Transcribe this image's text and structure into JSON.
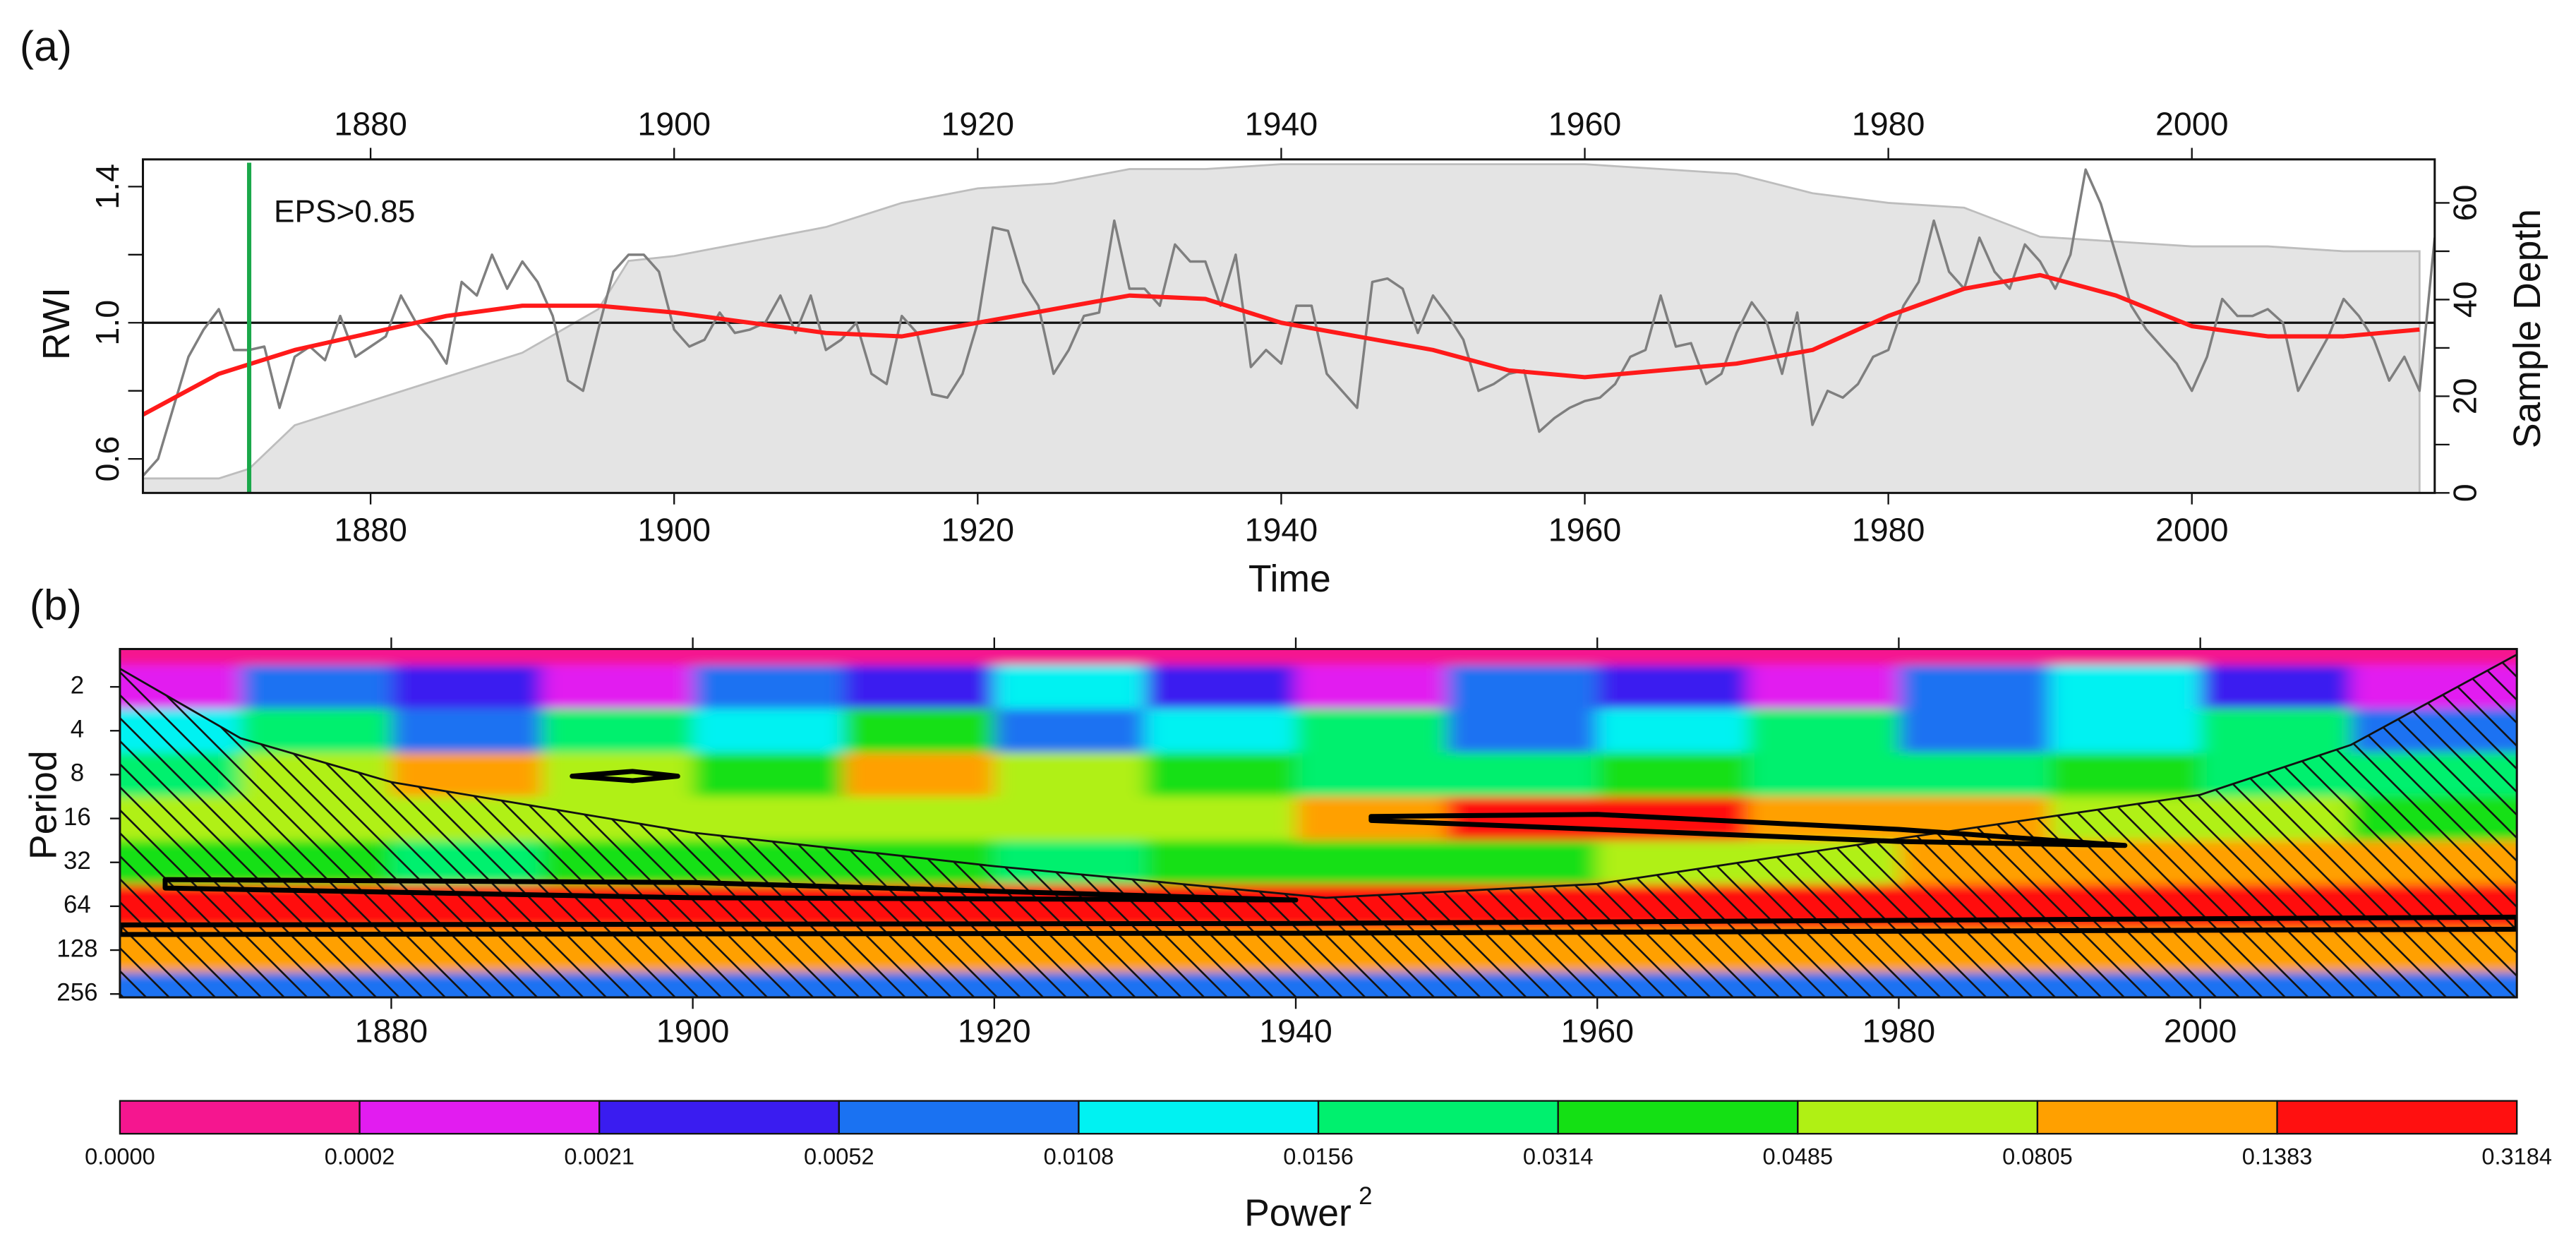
{
  "chart_data": [
    {
      "type": "line",
      "panel_label": "(a)",
      "xlabel": "Time",
      "ylabel": "RWI",
      "y2label": "Sample Depth",
      "xlim": [
        1865,
        2016
      ],
      "xticks": [
        1880,
        1900,
        1920,
        1940,
        1960,
        1980,
        2000
      ],
      "ylim": [
        0.5,
        1.48
      ],
      "yticks": [
        0.6,
        {
          "value": 1,
          "label": "1.0"
        },
        1.4
      ],
      "yminorticks": [
        0.8,
        1.2
      ],
      "y2lim": [
        0,
        69
      ],
      "y2ticks": [
        0,
        20,
        40,
        60
      ],
      "y2minorticks": [
        10,
        30,
        50
      ],
      "hline": 1,
      "annotation": {
        "text": "EPS>0.85",
        "x": 1872,
        "color": "#1aa84a"
      },
      "series": [
        {
          "kind": "area",
          "axis": "y2",
          "color": "#e4e4e4",
          "x": [
            1865,
            1870,
            1872,
            1875,
            1880,
            1885,
            1890,
            1895,
            1897,
            1900,
            1905,
            1910,
            1915,
            1920,
            1925,
            1930,
            1935,
            1940,
            1945,
            1950,
            1955,
            1960,
            1965,
            1970,
            1975,
            1980,
            1985,
            1990,
            1995,
            2000,
            2005,
            2010,
            2015
          ],
          "values": [
            3,
            3,
            5,
            14,
            19,
            24,
            29,
            38,
            48,
            49,
            52,
            55,
            60,
            63,
            64,
            67,
            67,
            68,
            68,
            68,
            68,
            68,
            67,
            66,
            62,
            60,
            59,
            53,
            52,
            51,
            51,
            50,
            50
          ]
        },
        {
          "kind": "line",
          "color": "#7f7f7f",
          "x": [
            1865,
            1866,
            1867,
            1868,
            1869,
            1870,
            1871,
            1872,
            1873,
            1874,
            1875,
            1876,
            1877,
            1878,
            1879,
            1880,
            1881,
            1882,
            1883,
            1884,
            1885,
            1886,
            1887,
            1888,
            1889,
            1890,
            1891,
            1892,
            1893,
            1894,
            1895,
            1896,
            1897,
            1898,
            1899,
            1900,
            1901,
            1902,
            1903,
            1904,
            1905,
            1906,
            1907,
            1908,
            1909,
            1910,
            1911,
            1912,
            1913,
            1914,
            1915,
            1916,
            1917,
            1918,
            1919,
            1920,
            1921,
            1922,
            1923,
            1924,
            1925,
            1926,
            1927,
            1928,
            1929,
            1930,
            1931,
            1932,
            1933,
            1934,
            1935,
            1936,
            1937,
            1938,
            1939,
            1940,
            1941,
            1942,
            1943,
            1944,
            1945,
            1946,
            1947,
            1948,
            1949,
            1950,
            1951,
            1952,
            1953,
            1954,
            1955,
            1956,
            1957,
            1958,
            1959,
            1960,
            1961,
            1962,
            1963,
            1964,
            1965,
            1966,
            1967,
            1968,
            1969,
            1970,
            1971,
            1972,
            1973,
            1974,
            1975,
            1976,
            1977,
            1978,
            1979,
            1980,
            1981,
            1982,
            1983,
            1984,
            1985,
            1986,
            1987,
            1988,
            1989,
            1990,
            1991,
            1992,
            1993,
            1994,
            1995,
            1996,
            1997,
            1998,
            1999,
            2000,
            2001,
            2002,
            2003,
            2004,
            2005,
            2006,
            2007,
            2008,
            2009,
            2010,
            2011,
            2012,
            2013,
            2014,
            2015,
            2016
          ],
          "values": [
            0.55,
            0.6,
            0.75,
            0.9,
            0.98,
            1.04,
            0.92,
            0.92,
            0.93,
            0.75,
            0.9,
            0.93,
            0.89,
            1.02,
            0.9,
            0.93,
            0.96,
            1.08,
            1.0,
            0.95,
            0.88,
            1.12,
            1.08,
            1.2,
            1.1,
            1.18,
            1.12,
            1.02,
            0.83,
            0.8,
            0.98,
            1.15,
            1.2,
            1.2,
            1.15,
            0.98,
            0.93,
            0.95,
            1.03,
            0.97,
            0.98,
            1.0,
            1.08,
            0.97,
            1.08,
            0.92,
            0.95,
            1.0,
            0.85,
            0.82,
            1.02,
            0.97,
            0.79,
            0.78,
            0.85,
            1.0,
            1.28,
            1.27,
            1.12,
            1.05,
            0.85,
            0.92,
            1.02,
            1.03,
            1.3,
            1.1,
            1.1,
            1.05,
            1.23,
            1.18,
            1.18,
            1.05,
            1.2,
            0.87,
            0.92,
            0.88,
            1.05,
            1.05,
            0.85,
            0.8,
            0.75,
            1.12,
            1.13,
            1.1,
            0.97,
            1.08,
            1.02,
            0.95,
            0.8,
            0.82,
            0.85,
            0.86,
            0.68,
            0.72,
            0.75,
            0.77,
            0.78,
            0.82,
            0.9,
            0.92,
            1.08,
            0.93,
            0.94,
            0.82,
            0.85,
            0.97,
            1.06,
            1.0,
            0.85,
            1.03,
            0.7,
            0.8,
            0.78,
            0.82,
            0.9,
            0.92,
            1.05,
            1.12,
            1.3,
            1.15,
            1.1,
            1.25,
            1.15,
            1.1,
            1.23,
            1.18,
            1.1,
            1.2,
            1.45,
            1.35,
            1.2,
            1.05,
            0.98,
            0.93,
            0.88,
            0.8,
            0.9,
            1.07,
            1.02,
            1.02,
            1.04,
            1.0,
            0.8,
            0.88,
            0.96,
            1.07,
            1.02,
            0.95,
            0.83,
            0.9,
            0.8,
            1.25
          ]
        },
        {
          "kind": "line",
          "color": "#ff1a1a",
          "x": [
            1865,
            1870,
            1875,
            1880,
            1885,
            1890,
            1895,
            1900,
            1905,
            1910,
            1915,
            1920,
            1925,
            1930,
            1935,
            1940,
            1945,
            1950,
            1955,
            1960,
            1965,
            1970,
            1975,
            1980,
            1985,
            1990,
            1995,
            2000,
            2005,
            2010,
            2015
          ],
          "values": [
            0.73,
            0.85,
            0.92,
            0.97,
            1.02,
            1.05,
            1.05,
            1.03,
            1.0,
            0.97,
            0.96,
            1.0,
            1.04,
            1.08,
            1.07,
            1.0,
            0.96,
            0.92,
            0.86,
            0.84,
            0.86,
            0.88,
            0.92,
            1.02,
            1.1,
            1.14,
            1.08,
            0.99,
            0.96,
            0.96,
            0.98
          ]
        }
      ]
    },
    {
      "type": "heatmap",
      "panel_label": "(b)",
      "ylabel": "Period",
      "xlim": [
        1862,
        2021
      ],
      "xticks": [
        1880,
        1900,
        1920,
        1940,
        1960,
        1980,
        2000
      ],
      "ylim": [
        1.1,
        270
      ],
      "ylog": true,
      "yticks": [
        2,
        4,
        8,
        16,
        32,
        64,
        128,
        256
      ],
      "x": [
        1865,
        1875,
        1885,
        1895,
        1905,
        1915,
        1925,
        1935,
        1945,
        1955,
        1965,
        1975,
        1985,
        1995,
        2005,
        2015
      ],
      "y": [
        1,
        2,
        4,
        8,
        16,
        32,
        64,
        128,
        256
      ],
      "values": [
        [
          0.0001,
          0.0001,
          0.0001,
          0.0001,
          0.0001,
          0.0001,
          0.0001,
          0.0001,
          0.0001,
          0.0001,
          0.0001,
          0.0001,
          0.0001,
          0.0001,
          0.0001,
          0.0001
        ],
        [
          0.0008,
          0.008,
          0.003,
          0.0005,
          0.008,
          0.003,
          0.012,
          0.004,
          0.0008,
          0.007,
          0.003,
          0.0005,
          0.008,
          0.012,
          0.003,
          0.0008
        ],
        [
          0.012,
          0.02,
          0.007,
          0.02,
          0.014,
          0.04,
          0.007,
          0.014,
          0.02,
          0.007,
          0.013,
          0.02,
          0.007,
          0.014,
          0.025,
          0.01
        ],
        [
          0.03,
          0.06,
          0.1,
          0.06,
          0.04,
          0.1,
          0.06,
          0.04,
          0.03,
          0.02,
          0.04,
          0.025,
          0.03,
          0.04,
          0.02,
          0.03
        ],
        [
          0.05,
          0.06,
          0.06,
          0.05,
          0.06,
          0.06,
          0.05,
          0.06,
          0.1,
          0.15,
          0.15,
          0.12,
          0.1,
          0.06,
          0.05,
          0.04
        ],
        [
          0.04,
          0.04,
          0.03,
          0.035,
          0.04,
          0.04,
          0.03,
          0.04,
          0.04,
          0.04,
          0.06,
          0.06,
          0.1,
          0.1,
          0.1,
          0.1
        ],
        [
          0.2,
          0.2,
          0.2,
          0.2,
          0.2,
          0.2,
          0.2,
          0.15,
          0.2,
          0.2,
          0.2,
          0.2,
          0.2,
          0.2,
          0.2,
          0.2
        ],
        [
          0.09,
          0.1,
          0.1,
          0.1,
          0.1,
          0.09,
          0.09,
          0.09,
          0.1,
          0.1,
          0.1,
          0.1,
          0.1,
          0.1,
          0.1,
          0.1
        ],
        [
          0.008,
          0.008,
          0.008,
          0.008,
          0.008,
          0.008,
          0.008,
          0.008,
          0.008,
          0.008,
          0.008,
          0.008,
          0.008,
          0.008,
          0.008,
          0.008
        ]
      ],
      "colorbar": {
        "label": "Power",
        "label_superscript": "2",
        "boundaries": [
          {
            "value": 0,
            "label": "0.0000"
          },
          0.0002,
          0.0021,
          0.0052,
          0.0108,
          0.0156,
          0.0314,
          0.0485,
          0.0805,
          0.1383,
          0.3184
        ],
        "colors": [
          "#f5168f",
          "#e21cf0",
          "#3a1cf0",
          "#1a72f2",
          "#00f2f2",
          "#00f06e",
          "#14e014",
          "#b0f014",
          "#ffa000",
          "#ff1010"
        ]
      },
      "coi": {
        "x": [
          1862,
          1870,
          1880,
          1900,
          1920,
          1942,
          1960,
          1980,
          2000,
          2010,
          2021
        ],
        "values": [
          1.5,
          4.5,
          9,
          20,
          34,
          56,
          45,
          22,
          11,
          5,
          1.2
        ]
      },
      "contours": [
        {
          "x": [
            1892,
            1896,
            1899,
            1896,
            1892
          ],
          "values": [
            8.2,
            7.6,
            8.2,
            8.8,
            8.2
          ]
        },
        {
          "x": [
            1945,
            1960,
            1980,
            1995,
            1980,
            1960,
            1945
          ],
          "values": [
            15.5,
            15,
            19,
            24.5,
            23,
            19,
            16.5
          ]
        },
        {
          "x": [
            1865,
            1900,
            1940,
            1900,
            1865
          ],
          "values": [
            42,
            44,
            58,
            56,
            48
          ]
        },
        {
          "x": [
            1862,
            1940,
            2021,
            2021,
            1940,
            1862
          ],
          "values": [
            86,
            84,
            76,
            92,
            98,
            100
          ]
        }
      ]
    }
  ]
}
